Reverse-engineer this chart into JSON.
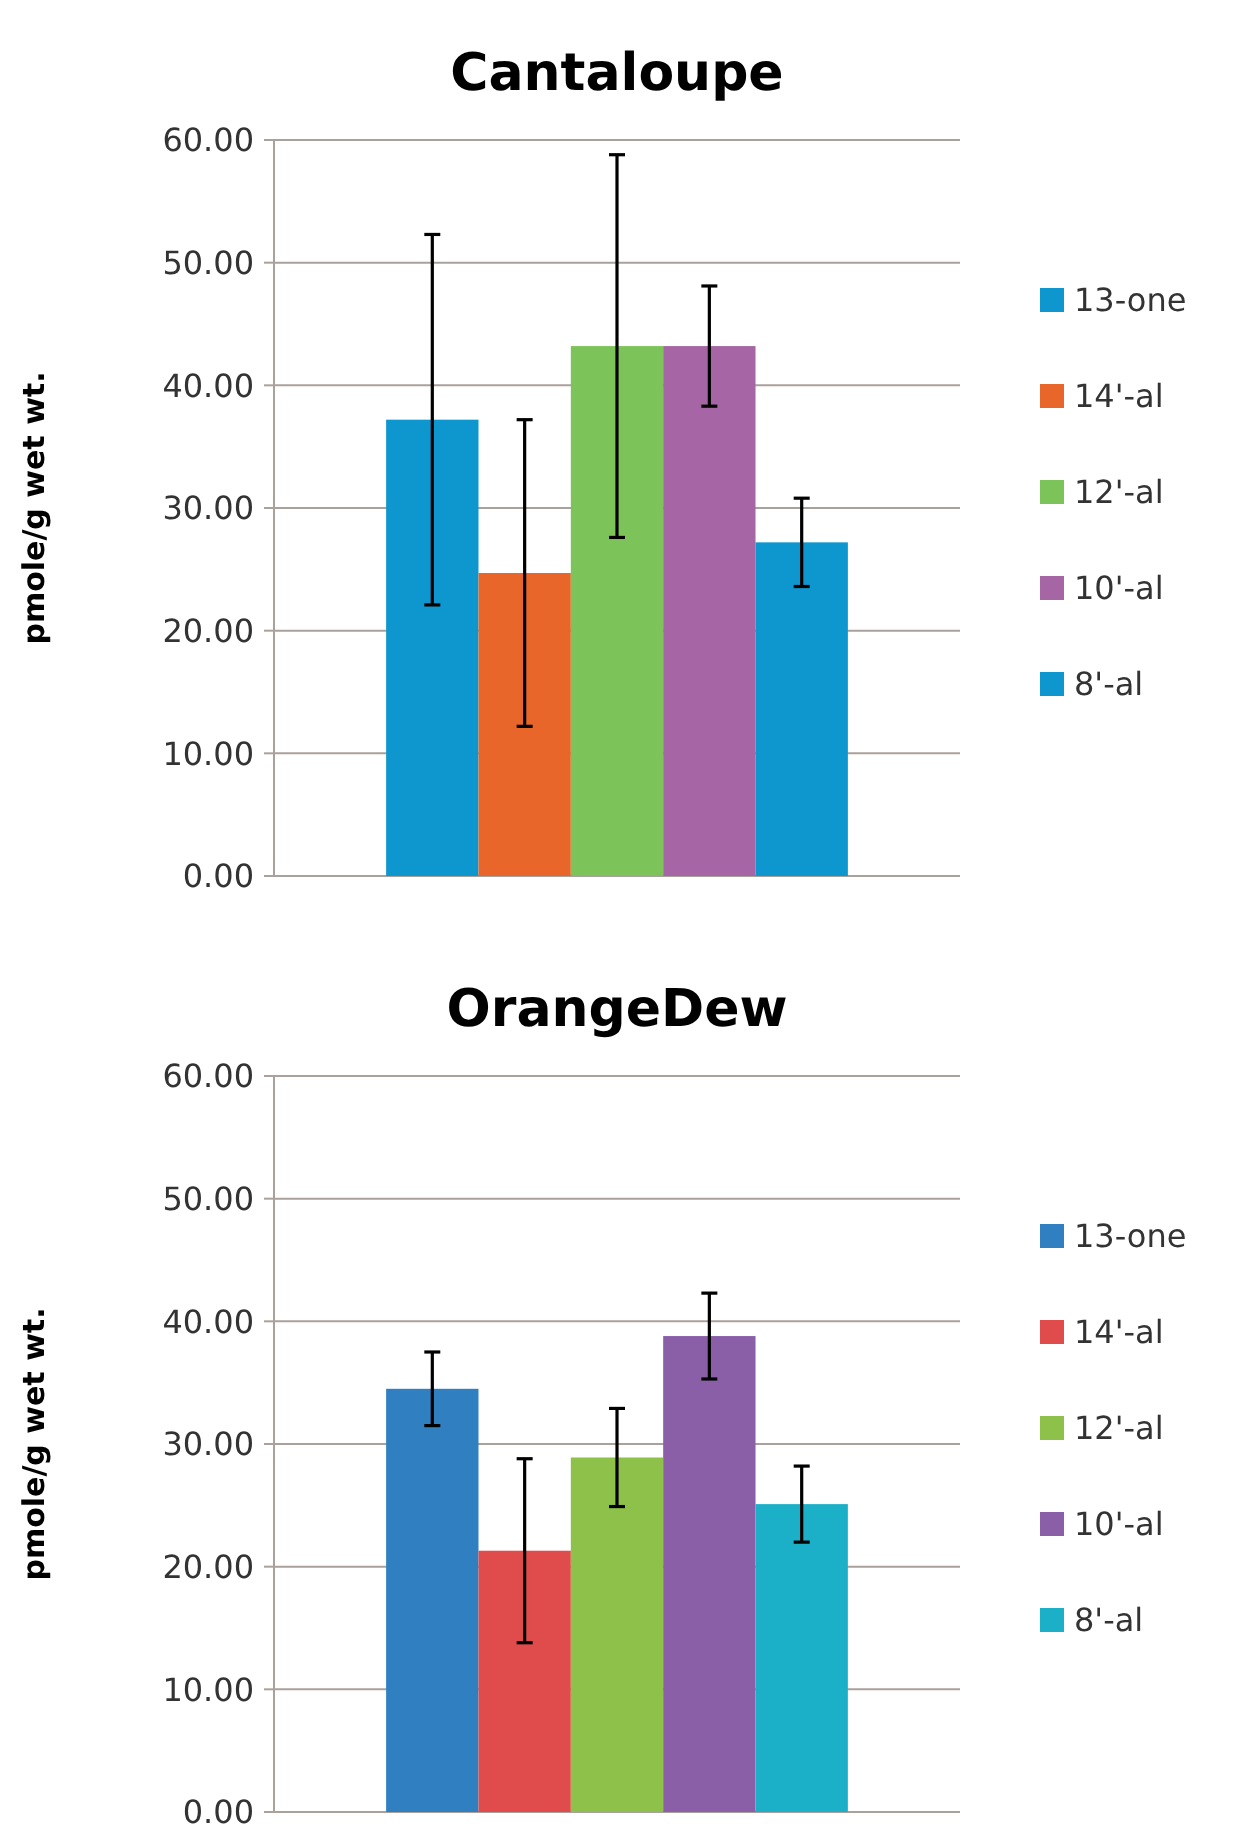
{
  "chart_data": [
    {
      "type": "bar",
      "title": "Cantaloupe",
      "ylabel": "pmole/g wet wt.",
      "categories": [
        null
      ],
      "ylim": [
        0,
        60
      ],
      "yticks": [
        {
          "value": 0,
          "label": "0.00"
        },
        {
          "value": 10,
          "label": "10.00"
        },
        {
          "value": 20,
          "label": "20.00"
        },
        {
          "value": 30,
          "label": "30.00"
        },
        {
          "value": 40,
          "label": "40.00"
        },
        {
          "value": 50,
          "label": "50.00"
        },
        {
          "value": 60,
          "label": "60.00"
        }
      ],
      "grid": "y",
      "legend": "right",
      "series": [
        {
          "name": "13-one",
          "color": "#0e96cf",
          "values": [
            37.2
          ],
          "errors": [
            15.1
          ]
        },
        {
          "name": "14'-al",
          "color": "#e8662a",
          "values": [
            24.7
          ],
          "errors": [
            12.5
          ]
        },
        {
          "name": "12'-al",
          "color": "#7cc45a",
          "values": [
            43.2
          ],
          "errors": [
            15.6
          ]
        },
        {
          "name": "10'-al",
          "color": "#a666a6",
          "values": [
            43.2
          ],
          "errors": [
            4.9
          ]
        },
        {
          "name": "8'-al",
          "color": "#0e96cf",
          "values": [
            27.2
          ],
          "errors": [
            3.6
          ]
        }
      ]
    },
    {
      "type": "bar",
      "title": "OrangeDew",
      "ylabel": "pmole/g wet wt.",
      "categories": [
        null
      ],
      "ylim": [
        0,
        60
      ],
      "yticks": [
        {
          "value": 0,
          "label": "0.00"
        },
        {
          "value": 10,
          "label": "10.00"
        },
        {
          "value": 20,
          "label": "20.00"
        },
        {
          "value": 30,
          "label": "30.00"
        },
        {
          "value": 40,
          "label": "40.00"
        },
        {
          "value": 50,
          "label": "50.00"
        },
        {
          "value": 60,
          "label": "60.00"
        }
      ],
      "grid": "y",
      "legend": "right",
      "series": [
        {
          "name": "13-one",
          "color": "#2f7fc1",
          "values": [
            34.5
          ],
          "errors": [
            3
          ]
        },
        {
          "name": "14'-al",
          "color": "#e04b4b",
          "values": [
            21.3
          ],
          "errors": [
            7.5
          ]
        },
        {
          "name": "12'-al",
          "color": "#8dc14a",
          "values": [
            28.9
          ],
          "errors": [
            4
          ]
        },
        {
          "name": "10'-al",
          "color": "#8a5fa8",
          "values": [
            38.8
          ],
          "errors": [
            3.5
          ]
        },
        {
          "name": "8'-al",
          "color": "#1cb0c8",
          "values": [
            25.1
          ],
          "errors": [
            3.1
          ]
        }
      ]
    }
  ]
}
